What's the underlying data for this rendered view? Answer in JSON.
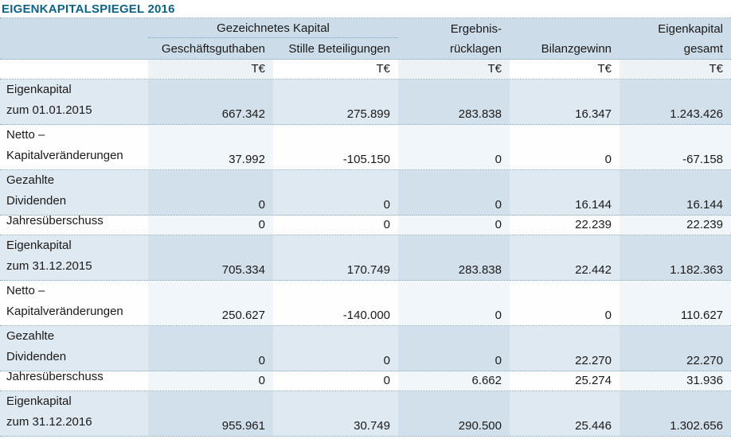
{
  "title": "EIGENKAPITALSPIEGEL 2016",
  "colors": {
    "title_text": "#0e6385",
    "header_band": "#ccdce8",
    "row_blue": "#dfe9f1",
    "row_blue_tint": "#d2e0eb",
    "row_white_tint": "#f1f6fa",
    "dotted_line": "#7fa6bd"
  },
  "table": {
    "group_header": "Gezeichnetes Kapital",
    "columns": [
      {
        "line1": "",
        "line2": "Geschäftsguthaben"
      },
      {
        "line1": "",
        "line2": "Stille Beteiligungen"
      },
      {
        "line1": "Ergebnis-",
        "line2": "rücklagen"
      },
      {
        "line1": "",
        "line2": "Bilanzgewinn"
      },
      {
        "line1": "Eigenkapital",
        "line2": "gesamt"
      }
    ],
    "unit": "T€",
    "units": [
      "T€",
      "T€",
      "T€",
      "T€",
      "T€"
    ],
    "rows": [
      {
        "label_lines": [
          "Eigenkapital",
          "zum 01.01.2015"
        ],
        "values": [
          "667.342",
          "275.899",
          "283.838",
          "16.347",
          "1.243.426"
        ]
      },
      {
        "label_lines": [
          "Netto –",
          "Kapitalveränderungen"
        ],
        "values": [
          "37.992",
          "-105.150",
          "0",
          "0",
          "-67.158"
        ]
      },
      {
        "label_lines": [
          "Gezahlte",
          "Dividenden"
        ],
        "values": [
          "0",
          "0",
          "0",
          "16.144",
          "16.144"
        ]
      },
      {
        "label_lines": [
          "Jahresüberschuss"
        ],
        "values": [
          "0",
          "0",
          "0",
          "22.239",
          "22.239"
        ]
      },
      {
        "label_lines": [
          "Eigenkapital",
          "zum 31.12.2015"
        ],
        "values": [
          "705.334",
          "170.749",
          "283.838",
          "22.442",
          "1.182.363"
        ]
      },
      {
        "label_lines": [
          "Netto –",
          "Kapitalveränderungen"
        ],
        "values": [
          "250.627",
          "-140.000",
          "0",
          "0",
          "110.627"
        ]
      },
      {
        "label_lines": [
          "Gezahlte",
          "Dividenden"
        ],
        "values": [
          "0",
          "0",
          "0",
          "22.270",
          "22.270"
        ]
      },
      {
        "label_lines": [
          "Jahresüberschuss"
        ],
        "values": [
          "0",
          "0",
          "6.662",
          "25.274",
          "31.936"
        ]
      },
      {
        "label_lines": [
          "Eigenkapital",
          "zum 31.12.2016"
        ],
        "values": [
          "955.961",
          "30.749",
          "290.500",
          "25.446",
          "1.302.656"
        ]
      }
    ]
  }
}
